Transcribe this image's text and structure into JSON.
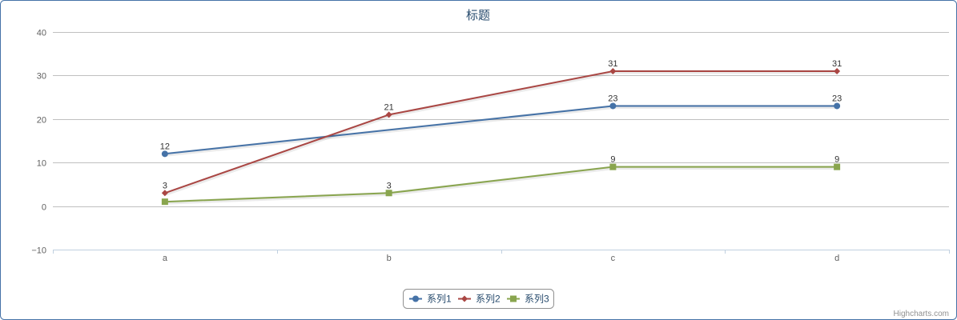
{
  "chart_data": {
    "type": "line",
    "title": "标题",
    "categories": [
      "a",
      "b",
      "c",
      "d"
    ],
    "ylim": [
      -10,
      40
    ],
    "yticks": [
      -10,
      0,
      10,
      20,
      30,
      40
    ],
    "grid": true,
    "legend_position": "bottom-center",
    "series": [
      {
        "name": "系列1",
        "values": [
          12,
          null,
          23,
          23
        ],
        "color": "#4572a7",
        "marker": "circle"
      },
      {
        "name": "系列2",
        "values": [
          3,
          21,
          31,
          31
        ],
        "color": "#aa4643",
        "marker": "diamond"
      },
      {
        "name": "系列3",
        "values": [
          1,
          3,
          9,
          9
        ],
        "color": "#89a54e",
        "marker": "square"
      }
    ],
    "data_labels": [
      [
        12,
        null,
        23,
        23
      ],
      [
        3,
        21,
        31,
        31
      ],
      [
        null,
        3,
        9,
        9
      ]
    ],
    "credits": "Highcharts.com"
  }
}
